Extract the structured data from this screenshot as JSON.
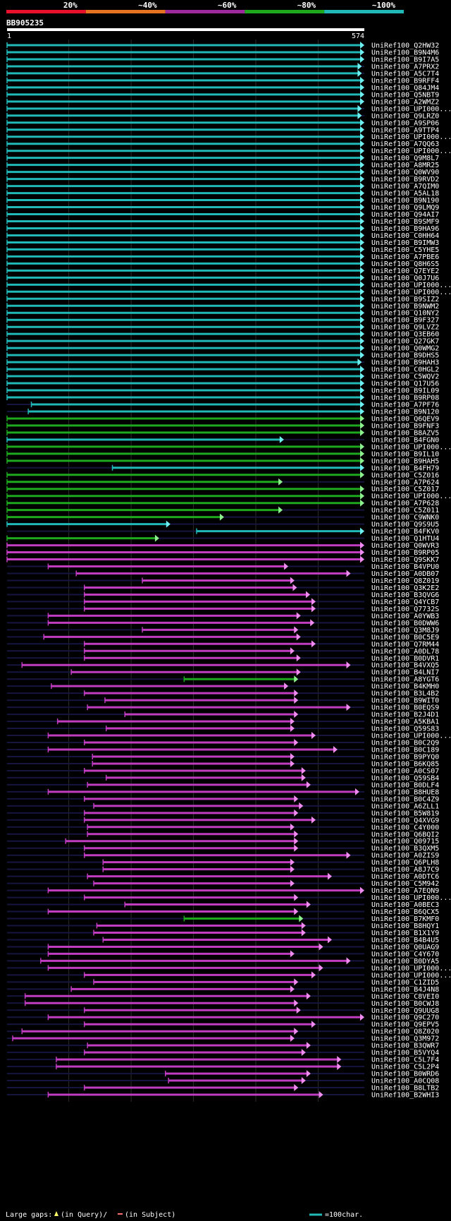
{
  "query": {
    "id": "BB905235",
    "start": "1",
    "end": "574",
    "length": 574
  },
  "identity_legend": [
    {
      "label": "20%",
      "color": "#e8102a"
    },
    {
      "label": "~40%",
      "color": "#e67322"
    },
    {
      "label": "~60%",
      "color": "#9c2a9a"
    },
    {
      "label": "~80%",
      "color": "#1ea81e"
    },
    {
      "label": "~100%",
      "color": "#21b8b8"
    }
  ],
  "footer": {
    "gaps_label": "Large gaps:",
    "query_gap": "(in Query)/",
    "subject_gap": "(in Subject)",
    "scale_label": "=100char."
  },
  "hits": [
    {
      "name": "UniRef100_Q2HW32",
      "start": 1,
      "end": 574,
      "color": "cyan"
    },
    {
      "name": "UniRef100_B9N4M6",
      "start": 1,
      "end": 574,
      "color": "cyan"
    },
    {
      "name": "UniRef100_B9I7A5",
      "start": 1,
      "end": 574,
      "color": "cyan"
    },
    {
      "name": "UniRef100_A7PRX2",
      "start": 1,
      "end": 570,
      "color": "cyan"
    },
    {
      "name": "UniRef100_A5C7T4",
      "start": 1,
      "end": 570,
      "color": "cyan"
    },
    {
      "name": "UniRef100_B9RFF4",
      "start": 1,
      "end": 574,
      "color": "cyan"
    },
    {
      "name": "UniRef100_Q84JM4",
      "start": 1,
      "end": 574,
      "color": "cyan"
    },
    {
      "name": "UniRef100_Q5NBT9",
      "start": 1,
      "end": 574,
      "color": "cyan"
    },
    {
      "name": "UniRef100_A2WMZ2",
      "start": 1,
      "end": 574,
      "color": "cyan"
    },
    {
      "name": "UniRef100_UPI000...",
      "start": 1,
      "end": 570,
      "color": "cyan"
    },
    {
      "name": "UniRef100_Q9LRZ0",
      "start": 1,
      "end": 570,
      "color": "cyan"
    },
    {
      "name": "UniRef100_A9SP06",
      "start": 1,
      "end": 574,
      "color": "cyan"
    },
    {
      "name": "UniRef100_A9TTP4",
      "start": 1,
      "end": 574,
      "color": "cyan"
    },
    {
      "name": "UniRef100_UPI000...",
      "start": 1,
      "end": 574,
      "color": "cyan"
    },
    {
      "name": "UniRef100_A7QQ63",
      "start": 1,
      "end": 574,
      "color": "cyan"
    },
    {
      "name": "UniRef100_UPI000...",
      "start": 1,
      "end": 574,
      "color": "cyan"
    },
    {
      "name": "UniRef100_Q9M8L7",
      "start": 1,
      "end": 574,
      "color": "cyan"
    },
    {
      "name": "UniRef100_A8MR25",
      "start": 1,
      "end": 574,
      "color": "cyan"
    },
    {
      "name": "UniRef100_Q0WV90",
      "start": 1,
      "end": 574,
      "color": "cyan"
    },
    {
      "name": "UniRef100_B9RVD2",
      "start": 1,
      "end": 574,
      "color": "cyan"
    },
    {
      "name": "UniRef100_A7QIM0",
      "start": 1,
      "end": 574,
      "color": "cyan"
    },
    {
      "name": "UniRef100_A5AL18",
      "start": 1,
      "end": 574,
      "color": "cyan"
    },
    {
      "name": "UniRef100_B9N190",
      "start": 1,
      "end": 574,
      "color": "cyan"
    },
    {
      "name": "UniRef100_Q9LMQ9",
      "start": 1,
      "end": 574,
      "color": "cyan"
    },
    {
      "name": "UniRef100_Q94AI7",
      "start": 1,
      "end": 574,
      "color": "cyan"
    },
    {
      "name": "UniRef100_B9SMF9",
      "start": 1,
      "end": 574,
      "color": "cyan"
    },
    {
      "name": "UniRef100_B9HA96",
      "start": 1,
      "end": 574,
      "color": "cyan"
    },
    {
      "name": "UniRef100_C0HH64",
      "start": 1,
      "end": 574,
      "color": "cyan"
    },
    {
      "name": "UniRef100_B9IMW3",
      "start": 1,
      "end": 574,
      "color": "cyan"
    },
    {
      "name": "UniRef100_C5YHE5",
      "start": 1,
      "end": 574,
      "color": "cyan"
    },
    {
      "name": "UniRef100_A7PBE6",
      "start": 1,
      "end": 574,
      "color": "cyan"
    },
    {
      "name": "UniRef100_Q8H6S5",
      "start": 1,
      "end": 574,
      "color": "cyan"
    },
    {
      "name": "UniRef100_Q7EYE2",
      "start": 1,
      "end": 574,
      "color": "cyan"
    },
    {
      "name": "UniRef100_Q0J7U6",
      "start": 1,
      "end": 574,
      "color": "cyan"
    },
    {
      "name": "UniRef100_UPI000...",
      "start": 1,
      "end": 574,
      "color": "cyan"
    },
    {
      "name": "UniRef100_UPI000...",
      "start": 1,
      "end": 574,
      "color": "cyan"
    },
    {
      "name": "UniRef100_B9SIZ2",
      "start": 1,
      "end": 574,
      "color": "cyan"
    },
    {
      "name": "UniRef100_B9NWM2",
      "start": 1,
      "end": 574,
      "color": "cyan"
    },
    {
      "name": "UniRef100_Q10NY2",
      "start": 1,
      "end": 574,
      "color": "cyan"
    },
    {
      "name": "UniRef100_B9F327",
      "start": 1,
      "end": 574,
      "color": "cyan"
    },
    {
      "name": "UniRef100_Q9LVZ2",
      "start": 1,
      "end": 574,
      "color": "cyan"
    },
    {
      "name": "UniRef100_Q3EB60",
      "start": 1,
      "end": 574,
      "color": "cyan"
    },
    {
      "name": "UniRef100_Q27GK7",
      "start": 1,
      "end": 574,
      "color": "cyan"
    },
    {
      "name": "UniRef100_Q0WMG2",
      "start": 1,
      "end": 574,
      "color": "cyan"
    },
    {
      "name": "UniRef100_B9DHS5",
      "start": 1,
      "end": 574,
      "color": "cyan"
    },
    {
      "name": "UniRef100_B9HAH3",
      "start": 1,
      "end": 570,
      "color": "cyan"
    },
    {
      "name": "UniRef100_C0HGL2",
      "start": 1,
      "end": 574,
      "color": "cyan"
    },
    {
      "name": "UniRef100_C5WQV2",
      "start": 1,
      "end": 574,
      "color": "cyan"
    },
    {
      "name": "UniRef100_Q17U56",
      "start": 1,
      "end": 574,
      "color": "cyan"
    },
    {
      "name": "UniRef100_B9IL09",
      "start": 1,
      "end": 574,
      "color": "cyan"
    },
    {
      "name": "UniRef100_B9RP08",
      "start": 1,
      "end": 574,
      "color": "cyan"
    },
    {
      "name": "UniRef100_A7PF76",
      "start": 40,
      "end": 574,
      "color": "cyan"
    },
    {
      "name": "UniRef100_B9N120",
      "start": 35,
      "end": 574,
      "color": "cyan"
    },
    {
      "name": "UniRef100_Q6QEV9",
      "start": 1,
      "end": 574,
      "color": "green"
    },
    {
      "name": "UniRef100_B9FNF3",
      "start": 1,
      "end": 574,
      "color": "green"
    },
    {
      "name": "UniRef100_B8AZV5",
      "start": 1,
      "end": 574,
      "color": "green"
    },
    {
      "name": "UniRef100_B4FGN0",
      "start": 1,
      "end": 445,
      "color": "cyan"
    },
    {
      "name": "UniRef100_UPI000...",
      "start": 1,
      "end": 574,
      "color": "green"
    },
    {
      "name": "UniRef100_B9IL10",
      "start": 1,
      "end": 574,
      "color": "green"
    },
    {
      "name": "UniRef100_B9HAH5",
      "start": 1,
      "end": 574,
      "color": "green"
    },
    {
      "name": "UniRef100_B4FH79",
      "start": 170,
      "end": 574,
      "color": "cyan"
    },
    {
      "name": "UniRef100_C5Z016",
      "start": 1,
      "end": 574,
      "color": "green"
    },
    {
      "name": "UniRef100_A7P624",
      "start": 1,
      "end": 443,
      "color": "green"
    },
    {
      "name": "UniRef100_C5Z017",
      "start": 1,
      "end": 574,
      "color": "green"
    },
    {
      "name": "UniRef100_UPI000...",
      "start": 1,
      "end": 574,
      "color": "green"
    },
    {
      "name": "UniRef100_A7P628",
      "start": 1,
      "end": 574,
      "color": "green"
    },
    {
      "name": "UniRef100_C5Z011",
      "start": 1,
      "end": 443,
      "color": "green"
    },
    {
      "name": "UniRef100_C9WNK0",
      "start": 1,
      "end": 349,
      "color": "green"
    },
    {
      "name": "UniRef100_Q9S9U5",
      "start": 1,
      "end": 263,
      "color": "cyan"
    },
    {
      "name": "UniRef100_B4FKV0",
      "start": 305,
      "end": 574,
      "color": "cyan"
    },
    {
      "name": "UniRef100_Q1HTU4",
      "start": 1,
      "end": 245,
      "color": "green"
    },
    {
      "name": "UniRef100_Q0WVR3",
      "start": 1,
      "end": 574,
      "color": "magenta"
    },
    {
      "name": "UniRef100_B9RP05",
      "start": 1,
      "end": 574,
      "color": "magenta"
    },
    {
      "name": "UniRef100_Q9SKK7",
      "start": 1,
      "end": 574,
      "color": "magenta"
    },
    {
      "name": "UniRef100_B4VPU0",
      "start": 67,
      "end": 452,
      "color": "magenta"
    },
    {
      "name": "UniRef100_A0DB07",
      "start": 112,
      "end": 552,
      "color": "magenta"
    },
    {
      "name": "UniRef100_Q8Z019",
      "start": 218,
      "end": 462,
      "color": "magenta"
    },
    {
      "name": "UniRef100_Q3K2E2",
      "start": 125,
      "end": 466,
      "color": "magenta"
    },
    {
      "name": "UniRef100_B3QVG6",
      "start": 125,
      "end": 487,
      "color": "magenta"
    },
    {
      "name": "UniRef100_Q4YCB7",
      "start": 125,
      "end": 496,
      "color": "magenta"
    },
    {
      "name": "UniRef100_Q7732S",
      "start": 125,
      "end": 496,
      "color": "magenta"
    },
    {
      "name": "UniRef100_A0YWB3",
      "start": 67,
      "end": 472,
      "color": "magenta"
    },
    {
      "name": "UniRef100_B0DWW6",
      "start": 67,
      "end": 494,
      "color": "magenta"
    },
    {
      "name": "UniRef100_Q3M8J9",
      "start": 218,
      "end": 468,
      "color": "magenta"
    },
    {
      "name": "UniRef100_B0C5E9",
      "start": 60,
      "end": 472,
      "color": "magenta"
    },
    {
      "name": "UniRef100_Q7RM44",
      "start": 125,
      "end": 496,
      "color": "magenta"
    },
    {
      "name": "UniRef100_A0DL78",
      "start": 125,
      "end": 462,
      "color": "magenta"
    },
    {
      "name": "UniRef100_B0DVR1",
      "start": 125,
      "end": 472,
      "color": "magenta"
    },
    {
      "name": "UniRef100_B4VXQ5",
      "start": 25,
      "end": 552,
      "color": "magenta"
    },
    {
      "name": "UniRef100_B4LNI7",
      "start": 104,
      "end": 472,
      "color": "magenta"
    },
    {
      "name": "UniRef100_A8YGT6",
      "start": 285,
      "end": 468,
      "color": "green"
    },
    {
      "name": "UniRef100_B4KMH0",
      "start": 72,
      "end": 452,
      "color": "magenta"
    },
    {
      "name": "UniRef100_B3L4B2",
      "start": 125,
      "end": 468,
      "color": "magenta"
    },
    {
      "name": "UniRef100_B9WIT0",
      "start": 158,
      "end": 468,
      "color": "magenta"
    },
    {
      "name": "UniRef100_B0EQS9",
      "start": 130,
      "end": 552,
      "color": "magenta"
    },
    {
      "name": "UniRef100_B2J4D1",
      "start": 190,
      "end": 468,
      "color": "magenta"
    },
    {
      "name": "UniRef100_A5KBA1",
      "start": 82,
      "end": 462,
      "color": "magenta"
    },
    {
      "name": "UniRef100_Q59S83",
      "start": 160,
      "end": 462,
      "color": "magenta"
    },
    {
      "name": "UniRef100_UPI000...",
      "start": 67,
      "end": 496,
      "color": "magenta"
    },
    {
      "name": "UniRef100_B0C2Q9",
      "start": 125,
      "end": 468,
      "color": "magenta"
    },
    {
      "name": "UniRef100_B0C189",
      "start": 67,
      "end": 531,
      "color": "magenta"
    },
    {
      "name": "UniRef100_B9PYQ0",
      "start": 138,
      "end": 462,
      "color": "magenta"
    },
    {
      "name": "UniRef100_B6KQ85",
      "start": 138,
      "end": 462,
      "color": "magenta"
    },
    {
      "name": "UniRef100_A0CS07",
      "start": 125,
      "end": 480,
      "color": "magenta"
    },
    {
      "name": "UniRef100_Q59SB4",
      "start": 160,
      "end": 480,
      "color": "magenta"
    },
    {
      "name": "UniRef100_B0DLF4",
      "start": 130,
      "end": 488,
      "color": "magenta"
    },
    {
      "name": "UniRef100_B8HUE8",
      "start": 67,
      "end": 566,
      "color": "magenta"
    },
    {
      "name": "UniRef100_B0C4Z9",
      "start": 125,
      "end": 468,
      "color": "magenta"
    },
    {
      "name": "UniRef100_A6ZLL1",
      "start": 140,
      "end": 476,
      "color": "magenta"
    },
    {
      "name": "UniRef100_B5W819",
      "start": 125,
      "end": 468,
      "color": "magenta"
    },
    {
      "name": "UniRef100_Q4XVG9",
      "start": 125,
      "end": 496,
      "color": "magenta"
    },
    {
      "name": "UniRef100_C4Y000",
      "start": 130,
      "end": 462,
      "color": "magenta"
    },
    {
      "name": "UniRef100_Q6BQI2",
      "start": 130,
      "end": 468,
      "color": "magenta"
    },
    {
      "name": "UniRef100_Q09715",
      "start": 95,
      "end": 468,
      "color": "magenta"
    },
    {
      "name": "UniRef100_B3QXM5",
      "start": 125,
      "end": 468,
      "color": "magenta"
    },
    {
      "name": "UniRef100_A0ZIS9",
      "start": 125,
      "end": 552,
      "color": "magenta"
    },
    {
      "name": "UniRef100_Q6PLH8",
      "start": 155,
      "end": 462,
      "color": "magenta"
    },
    {
      "name": "UniRef100_A8J7C9",
      "start": 155,
      "end": 462,
      "color": "magenta"
    },
    {
      "name": "UniRef100_A0DTC6",
      "start": 130,
      "end": 522,
      "color": "magenta"
    },
    {
      "name": "UniRef100_C5M942",
      "start": 140,
      "end": 462,
      "color": "magenta"
    },
    {
      "name": "UniRef100_A7EQN9",
      "start": 67,
      "end": 574,
      "color": "magenta"
    },
    {
      "name": "UniRef100_UPI000...",
      "start": 125,
      "end": 468,
      "color": "magenta"
    },
    {
      "name": "UniRef100_A0BEC3",
      "start": 190,
      "end": 488,
      "color": "magenta"
    },
    {
      "name": "UniRef100_B6QCX5",
      "start": 67,
      "end": 468,
      "color": "magenta"
    },
    {
      "name": "UniRef100_B7KMF0",
      "start": 285,
      "end": 476,
      "color": "green"
    },
    {
      "name": "UniRef100_B8HQY1",
      "start": 145,
      "end": 480,
      "color": "magenta"
    },
    {
      "name": "UniRef100_B1X1Y9",
      "start": 140,
      "end": 480,
      "color": "magenta"
    },
    {
      "name": "UniRef100_B4B4U5",
      "start": 155,
      "end": 522,
      "color": "magenta"
    },
    {
      "name": "UniRef100_Q0UAG9",
      "start": 67,
      "end": 508,
      "color": "magenta"
    },
    {
      "name": "UniRef100_C4Y670",
      "start": 67,
      "end": 462,
      "color": "magenta"
    },
    {
      "name": "UniRef100_B0DYA5",
      "start": 55,
      "end": 552,
      "color": "magenta"
    },
    {
      "name": "UniRef100_UPI000...",
      "start": 67,
      "end": 508,
      "color": "magenta"
    },
    {
      "name": "UniRef100_UPI000...",
      "start": 125,
      "end": 496,
      "color": "magenta"
    },
    {
      "name": "UniRef100_C1ZID5",
      "start": 140,
      "end": 468,
      "color": "magenta"
    },
    {
      "name": "UniRef100_B4J4N8",
      "start": 104,
      "end": 462,
      "color": "magenta"
    },
    {
      "name": "UniRef100_C8VEI0",
      "start": 30,
      "end": 488,
      "color": "magenta"
    },
    {
      "name": "UniRef100_B0CWJ8",
      "start": 30,
      "end": 468,
      "color": "magenta"
    },
    {
      "name": "UniRef100_Q9UUG8",
      "start": 125,
      "end": 472,
      "color": "magenta"
    },
    {
      "name": "UniRef100_Q9C270",
      "start": 67,
      "end": 574,
      "color": "magenta"
    },
    {
      "name": "UniRef100_Q9EPV5",
      "start": 125,
      "end": 496,
      "color": "magenta"
    },
    {
      "name": "UniRef100_Q8Z020",
      "start": 25,
      "end": 468,
      "color": "magenta"
    },
    {
      "name": "UniRef100_Q3M972",
      "start": 10,
      "end": 462,
      "color": "magenta"
    },
    {
      "name": "UniRef100_B3QWR7",
      "start": 130,
      "end": 488,
      "color": "magenta"
    },
    {
      "name": "UniRef100_B5VYQ4",
      "start": 125,
      "end": 480,
      "color": "magenta"
    },
    {
      "name": "UniRef100_C5L7F4",
      "start": 80,
      "end": 537,
      "color": "magenta"
    },
    {
      "name": "UniRef100_C5L2P4",
      "start": 80,
      "end": 537,
      "color": "magenta"
    },
    {
      "name": "UniRef100_B0WRD6",
      "start": 255,
      "end": 488,
      "color": "magenta"
    },
    {
      "name": "UniRef100_A0CQ08",
      "start": 260,
      "end": 480,
      "color": "magenta"
    },
    {
      "name": "UniRef100_B8LTB2",
      "start": 125,
      "end": 468,
      "color": "magenta"
    },
    {
      "name": "UniRef100_B2WHI3",
      "start": 67,
      "end": 508,
      "color": "magenta"
    }
  ]
}
